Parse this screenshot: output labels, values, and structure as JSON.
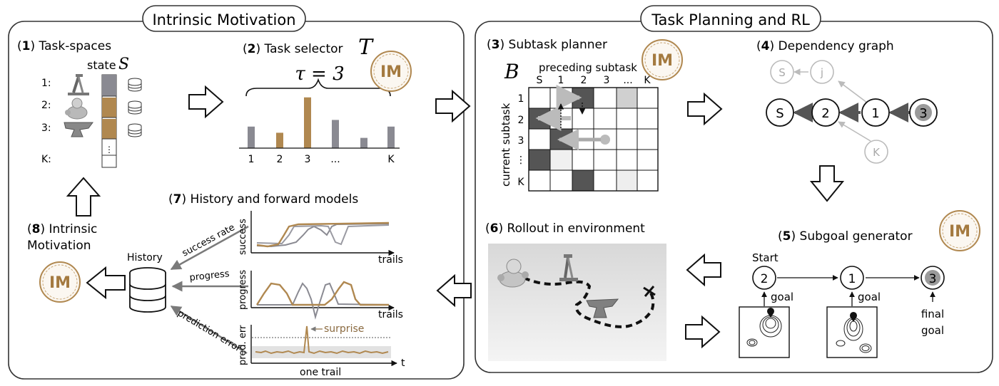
{
  "panels": {
    "left_title": "Intrinsic Motivation",
    "right_title": "Task Planning and RL"
  },
  "sections": {
    "s1": {
      "num": "1",
      "title": "Task-spaces"
    },
    "s2": {
      "num": "2",
      "title": "Task selector"
    },
    "s3": {
      "num": "3",
      "title": "Subtask planner"
    },
    "s4": {
      "num": "4",
      "title": "Dependency graph"
    },
    "s5": {
      "num": "5",
      "title": "Subgoal generator"
    },
    "s6": {
      "num": "6",
      "title": "Rollout in environment"
    },
    "s7": {
      "num": "7",
      "title": "History and forward models"
    },
    "s8": {
      "num": "8",
      "title_line1": "Intrinsic",
      "title_line2": "Motivation"
    }
  },
  "task_spaces": {
    "state_label": "state",
    "state_symbol": "S",
    "rows": [
      "1:",
      "2:",
      "3:",
      "K:"
    ],
    "ellipsis": "⋮"
  },
  "task_selector": {
    "symbol": "T",
    "tau_label": "τ = 3",
    "x_labels": [
      "1",
      "2",
      "3",
      "...",
      "K"
    ],
    "bars": [
      {
        "value": 0.42,
        "highlight": false
      },
      {
        "value": 0.3,
        "highlight": true
      },
      {
        "value": 0.99,
        "highlight": true
      },
      {
        "value": 0.55,
        "highlight": false
      },
      {
        "value": 0.2,
        "highlight": false
      },
      {
        "value": 0.42,
        "highlight": false
      }
    ]
  },
  "im_badge": "IM",
  "planner": {
    "matrix_symbol": "B",
    "col_header": "preceding subtask",
    "row_header": "current subtask",
    "col_labels": [
      "S",
      "1",
      "2",
      "3",
      "...",
      "K"
    ],
    "row_labels": [
      "1",
      "2",
      "3",
      "⋮",
      "K"
    ]
  },
  "dependency": {
    "faded_nodes": [
      "S",
      "j",
      "K"
    ],
    "main_nodes": [
      "S",
      "2",
      "1",
      "3"
    ]
  },
  "subgoal": {
    "start_label": "Start",
    "nodes": [
      "2",
      "1",
      "3"
    ],
    "goal_label": "goal",
    "final_goal_line1": "final",
    "final_goal_line2": "goal"
  },
  "history": {
    "db_label": "History",
    "arrows": [
      "success rate",
      "progress",
      "prediction error"
    ],
    "plots": [
      {
        "ylabel": "success",
        "xlabel": "trails"
      },
      {
        "ylabel": "progress",
        "xlabel": "trails"
      },
      {
        "ylabel": "pred. err",
        "xlabel": "one trail",
        "t_label": "t",
        "annotation": "surprise"
      }
    ]
  },
  "colors": {
    "accent": "#b08850",
    "gray_bar": "#8a8a92",
    "dark_cell": "#555555",
    "faded": "#b8b8b8"
  }
}
